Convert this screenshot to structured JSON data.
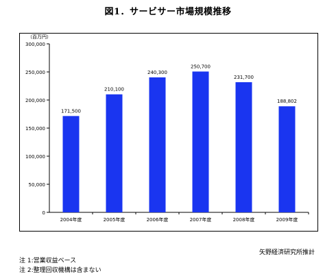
{
  "title": "図1．サービサー市場規模推移",
  "source": "矢野経済研究所推計",
  "notes": [
    "注 1:営業収益ベース",
    "注 2:整理回収機構は含まない"
  ],
  "chart_data": {
    "type": "bar",
    "unit_label": "（百万円）",
    "categories": [
      "2004年度",
      "2005年度",
      "2006年度",
      "2007年度",
      "2008年度",
      "2009年度"
    ],
    "values": [
      171500,
      210100,
      240300,
      250700,
      231700,
      188802
    ],
    "value_labels": [
      "171,500",
      "210,100",
      "240,300",
      "250,700",
      "231,700",
      "188,802"
    ],
    "ylim": [
      0,
      300000
    ],
    "yticks": [
      0,
      50000,
      100000,
      150000,
      200000,
      250000,
      300000
    ],
    "ytick_labels": [
      "0",
      "50,000",
      "100,000",
      "150,000",
      "200,000",
      "250,000",
      "300,000"
    ],
    "grid": false,
    "bar_color": "#1a35f0"
  }
}
